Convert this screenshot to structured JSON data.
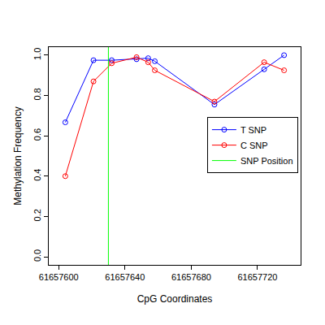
{
  "chart_data": {
    "type": "line",
    "x_label": "CpG Coordinates",
    "y_label": "Methylation Frequency",
    "x": [
      61657604,
      61657621,
      61657632,
      61657647,
      61657654,
      61657658,
      61657694,
      61657724,
      61657736
    ],
    "series": [
      {
        "name": "T SNP",
        "color": "#0000ff",
        "marker": "open_circle",
        "values": [
          0.667,
          0.975,
          0.975,
          0.98,
          0.985,
          0.97,
          0.755,
          0.93,
          1.0
        ]
      },
      {
        "name": "C SNP",
        "color": "#ff0000",
        "marker": "open_circle",
        "values": [
          0.4,
          0.87,
          0.96,
          0.99,
          0.965,
          0.925,
          0.77,
          0.965,
          0.925
        ]
      }
    ],
    "vlines": [
      {
        "name": "SNP Position",
        "color": "#00ff00",
        "x": 61657630
      }
    ],
    "xlim": [
      61657594,
      61657746
    ],
    "xticks": [
      61657600,
      61657640,
      61657680,
      61657720
    ],
    "ylim": [
      -0.04,
      1.04
    ],
    "yticks": [
      {
        "value": 0,
        "label": "0.0"
      },
      0.2,
      0.4,
      0.6,
      0.8,
      {
        "value": 1,
        "label": "1.0"
      }
    ],
    "legend": "right",
    "grid": false
  }
}
